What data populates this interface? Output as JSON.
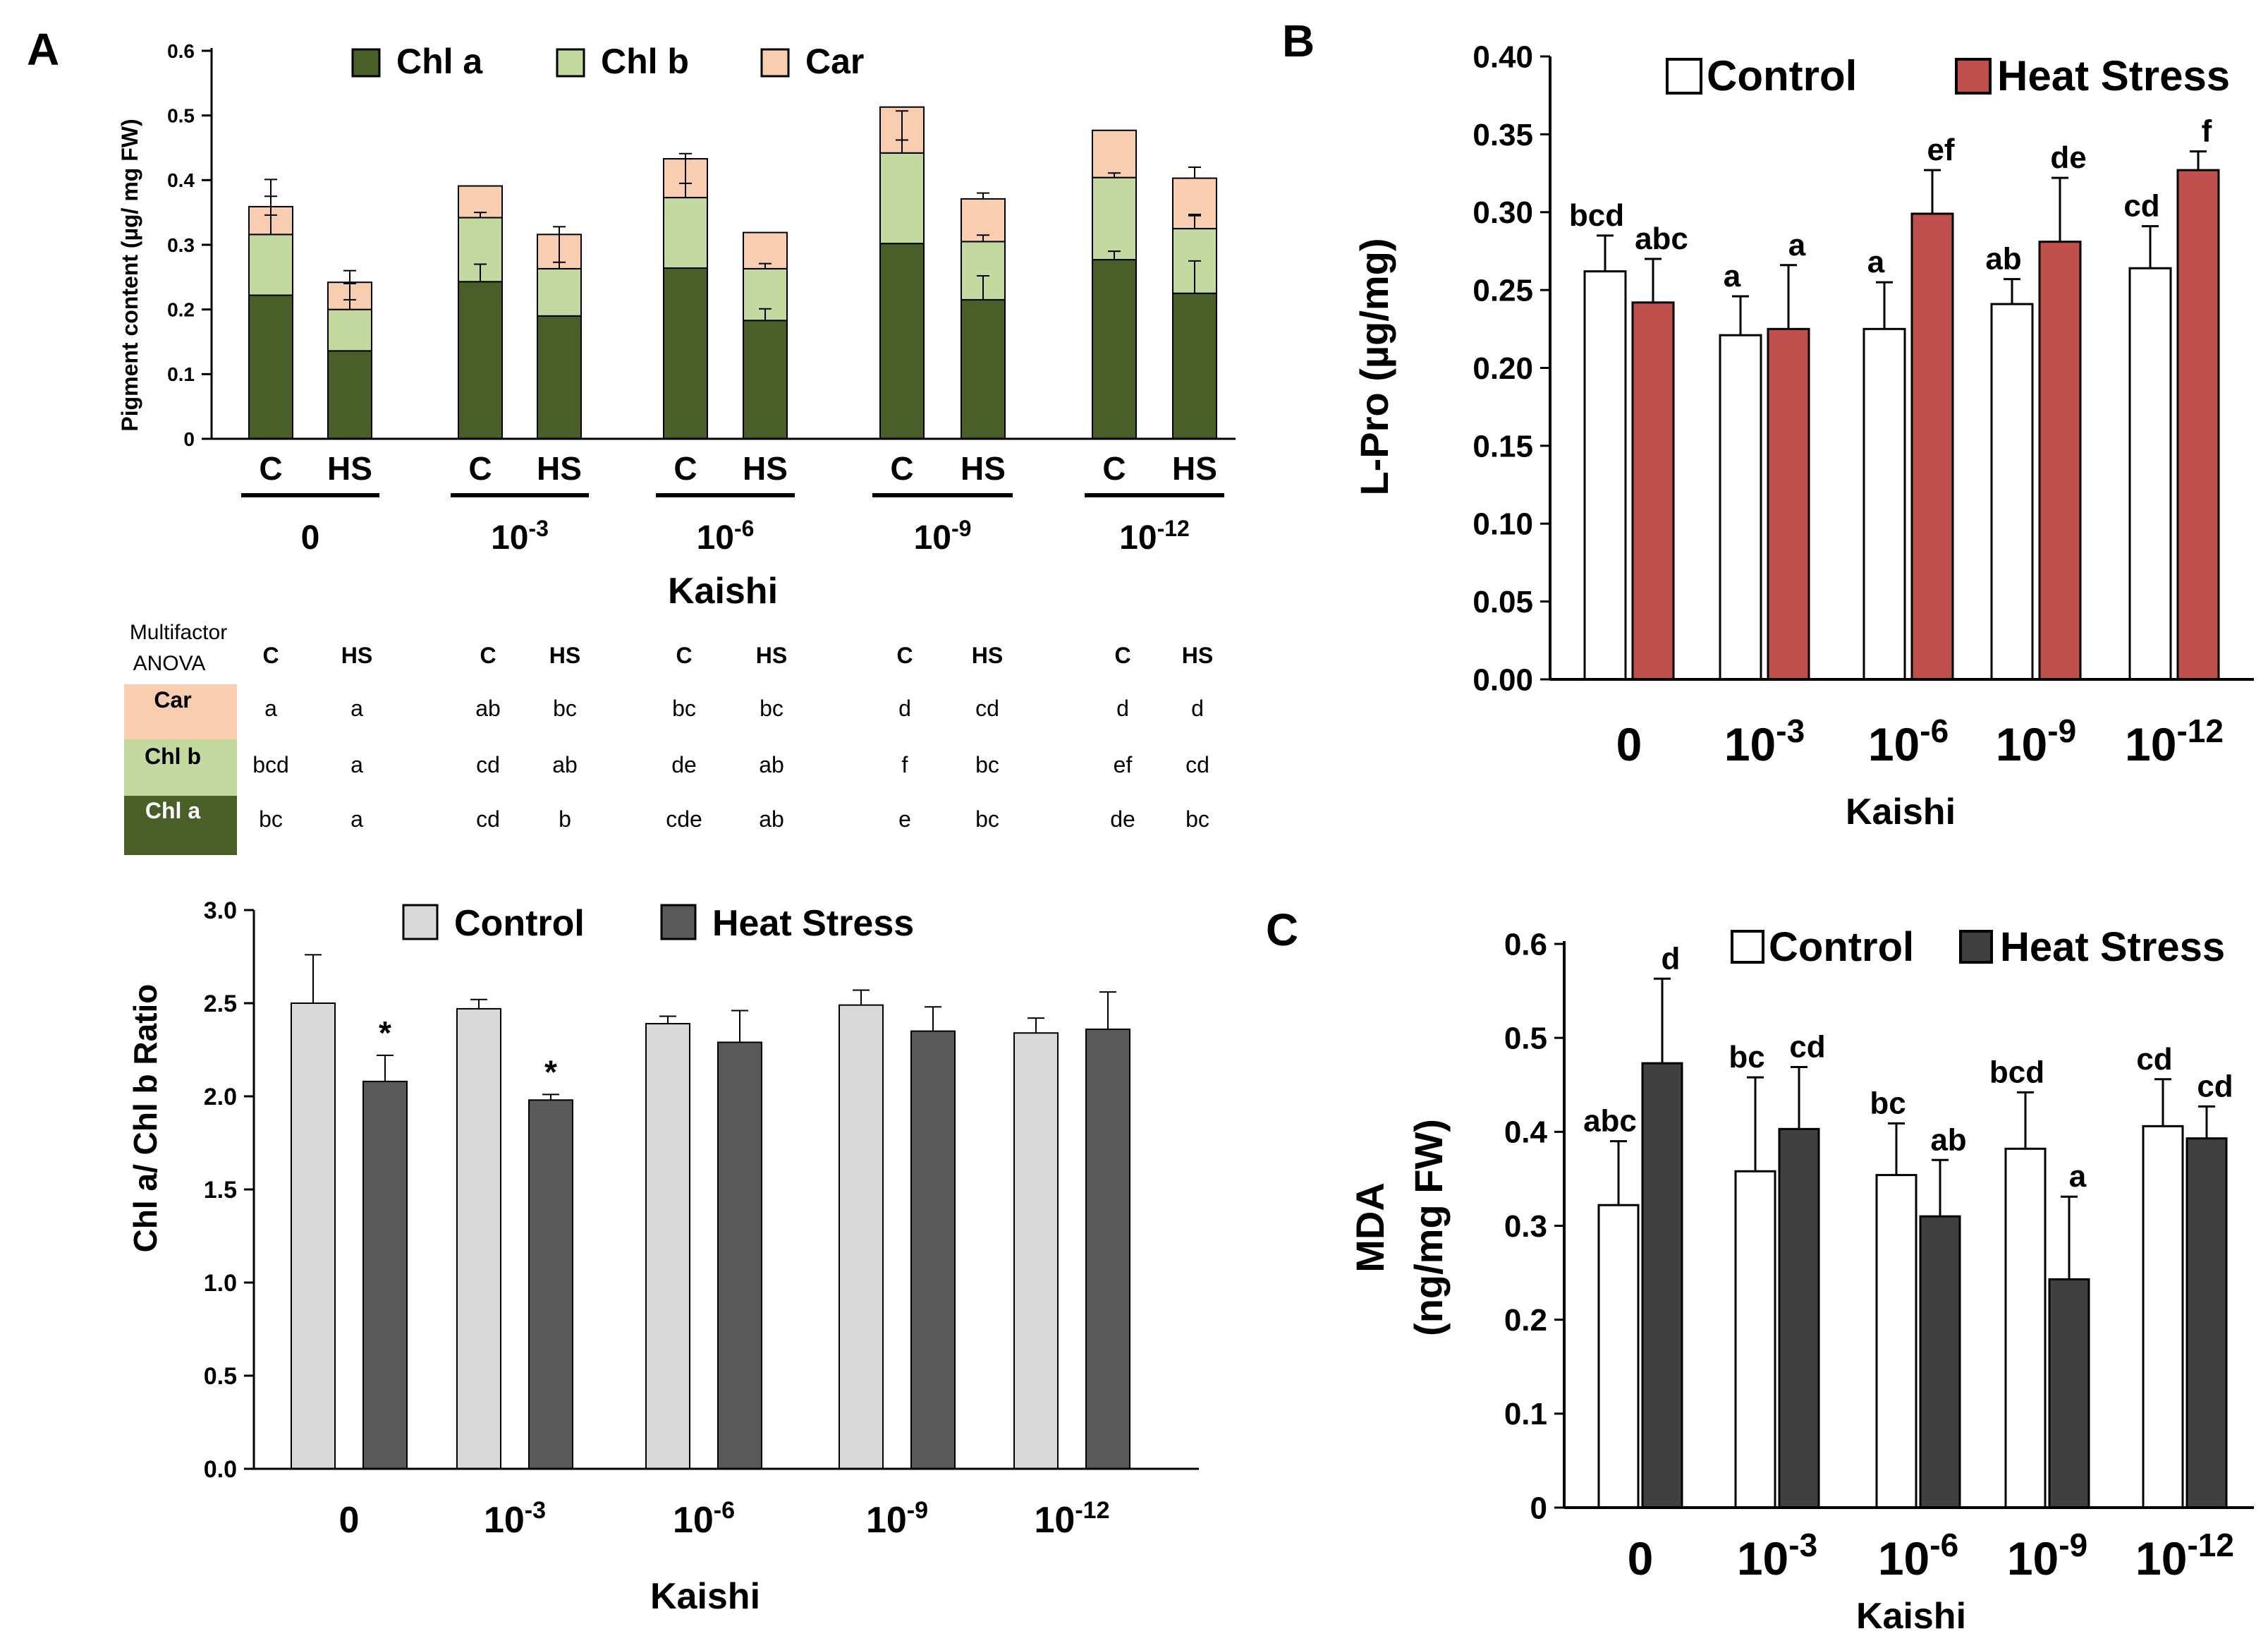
{
  "colors": {
    "chl_a": "#4a5e28",
    "chl_b": "#c4d9a0",
    "car": "#f9cdb0",
    "control_white": "#ffffff",
    "heat_red": "#c0504d",
    "ratio_control": "#d9d9d9",
    "ratio_heat": "#595959",
    "mda_heat": "#404040",
    "axis": "#000000"
  },
  "panel_labels": {
    "a": "A",
    "b": "B",
    "c": "C"
  },
  "kaishi": {
    "xlabel": "Kaishi",
    "base": "10",
    "groups": [
      {
        "label": "0",
        "exp": ""
      },
      {
        "label": "10",
        "exp": "-3"
      },
      {
        "label": "10",
        "exp": "-6"
      },
      {
        "label": "10",
        "exp": "-9"
      },
      {
        "label": "10",
        "exp": "-12"
      }
    ]
  },
  "chart_data": [
    {
      "id": "pigment",
      "type": "bar",
      "stacked": true,
      "ylabel": "Pigment content (µg/ mg FW)",
      "ylim": [
        0,
        0.6
      ],
      "yticks": [
        "0",
        "0.1",
        "0.2",
        "0.3",
        "0.4",
        "0.5",
        "0.6"
      ],
      "sublabels": [
        "C",
        "HS"
      ],
      "legend": [
        "Chl a",
        "Chl b",
        "Car"
      ],
      "series": [
        {
          "name": "Chl a",
          "values": [
            0.222,
            0.136,
            0.243,
            0.19,
            0.264,
            0.183,
            0.302,
            0.215,
            0.277,
            0.225
          ],
          "errors": [
            0.0,
            0.0,
            0.027,
            0.0,
            0.0,
            0.018,
            0.0,
            0.037,
            0.013,
            0.05
          ]
        },
        {
          "name": "Chl b",
          "values": [
            0.094,
            0.064,
            0.099,
            0.073,
            0.109,
            0.08,
            0.14,
            0.09,
            0.127,
            0.1
          ],
          "errors": [
            0.085,
            0.04,
            0.0,
            0.065,
            0.06,
            0.0,
            0.065,
            0.0,
            0.0,
            0.02
          ]
        },
        {
          "name": "Car",
          "values": [
            0.043,
            0.042,
            0.049,
            0.053,
            0.06,
            0.056,
            0.071,
            0.066,
            0.073,
            0.078
          ],
          "errors": [
            0.016,
            0.018,
            0.0,
            0.0,
            0.008,
            0.0,
            0.0,
            0.009,
            0.0,
            0.017
          ]
        }
      ],
      "inner_errors": [
        {
          "series": "Chl b",
          "errors": [
            0.03,
            0.015,
            0.008,
            0.01,
            0.022,
            0.008,
            0.02,
            0.01,
            0.007,
            0.022
          ]
        }
      ]
    },
    {
      "id": "anova",
      "type": "table",
      "title_line1": "Multifactor",
      "title_line2": "ANOVA",
      "columns": [
        "C",
        "HS",
        "C",
        "HS",
        "C",
        "HS",
        "C",
        "HS",
        "C",
        "HS"
      ],
      "rows": [
        {
          "label": "Car",
          "cells": [
            "a",
            "a",
            "ab",
            "bc",
            "bc",
            "bc",
            "d",
            "cd",
            "d",
            "d"
          ]
        },
        {
          "label": "Chl b",
          "cells": [
            "bcd",
            "a",
            "cd",
            "ab",
            "de",
            "ab",
            "f",
            "bc",
            "ef",
            "cd"
          ]
        },
        {
          "label": "Chl a",
          "cells": [
            "bc",
            "a",
            "cd",
            "b",
            "cde",
            "ab",
            "e",
            "bc",
            "de",
            "bc"
          ]
        }
      ]
    },
    {
      "id": "ratio",
      "type": "bar",
      "ylabel": "Chl a/ Chl b Ratio",
      "ylim": [
        0,
        3.0
      ],
      "yticks": [
        "0.0",
        "0.5",
        "1.0",
        "1.5",
        "2.0",
        "2.5",
        "3.0"
      ],
      "legend": [
        "Control",
        "Heat Stress"
      ],
      "series": [
        {
          "name": "Control",
          "values": [
            2.5,
            2.47,
            2.39,
            2.49,
            2.34
          ],
          "errors": [
            0.26,
            0.05,
            0.04,
            0.08,
            0.08
          ]
        },
        {
          "name": "Heat Stress",
          "values": [
            2.08,
            1.98,
            2.29,
            2.35,
            2.36
          ],
          "errors": [
            0.14,
            0.03,
            0.17,
            0.13,
            0.2
          ]
        }
      ],
      "annotations": [
        "",
        "*",
        "",
        "*",
        "",
        "",
        "",
        "",
        "",
        ""
      ]
    },
    {
      "id": "lpro",
      "type": "bar",
      "ylabel": "L-Pro (µg/mg)",
      "ylim": [
        0,
        0.4
      ],
      "yticks": [
        "0.00",
        "0.05",
        "0.10",
        "0.15",
        "0.20",
        "0.25",
        "0.30",
        "0.35",
        "0.40"
      ],
      "legend": [
        "Control",
        "Heat Stress"
      ],
      "series": [
        {
          "name": "Control",
          "values": [
            0.262,
            0.221,
            0.225,
            0.241,
            0.264
          ],
          "errors": [
            0.023,
            0.025,
            0.03,
            0.016,
            0.027
          ]
        },
        {
          "name": "Heat Stress",
          "values": [
            0.242,
            0.225,
            0.299,
            0.281,
            0.327
          ],
          "errors": [
            0.028,
            0.041,
            0.028,
            0.041,
            0.012
          ]
        }
      ],
      "letters": [
        [
          "bcd",
          "abc"
        ],
        [
          "a",
          "a"
        ],
        [
          "a",
          "ef"
        ],
        [
          "ab",
          "de"
        ],
        [
          "cd",
          "f"
        ]
      ]
    },
    {
      "id": "mda",
      "type": "bar",
      "ylabel": "MDA",
      "ylabel2": "(ng/mg FW)",
      "ylim": [
        0,
        0.6
      ],
      "yticks": [
        "0",
        "0.1",
        "0.2",
        "0.3",
        "0.4",
        "0.5",
        "0.6"
      ],
      "legend": [
        "Control",
        "Heat Stress"
      ],
      "series": [
        {
          "name": "Control",
          "values": [
            0.322,
            0.358,
            0.354,
            0.382,
            0.406
          ],
          "errors": [
            0.068,
            0.1,
            0.055,
            0.06,
            0.05
          ]
        },
        {
          "name": "Heat Stress",
          "values": [
            0.473,
            0.403,
            0.31,
            0.243,
            0.393
          ],
          "errors": [
            0.09,
            0.066,
            0.06,
            0.088,
            0.034
          ]
        }
      ],
      "letters": [
        [
          "abc",
          "d"
        ],
        [
          "bc",
          "cd"
        ],
        [
          "bc",
          "ab"
        ],
        [
          "bcd",
          "a"
        ],
        [
          "cd",
          "cd"
        ]
      ]
    }
  ]
}
